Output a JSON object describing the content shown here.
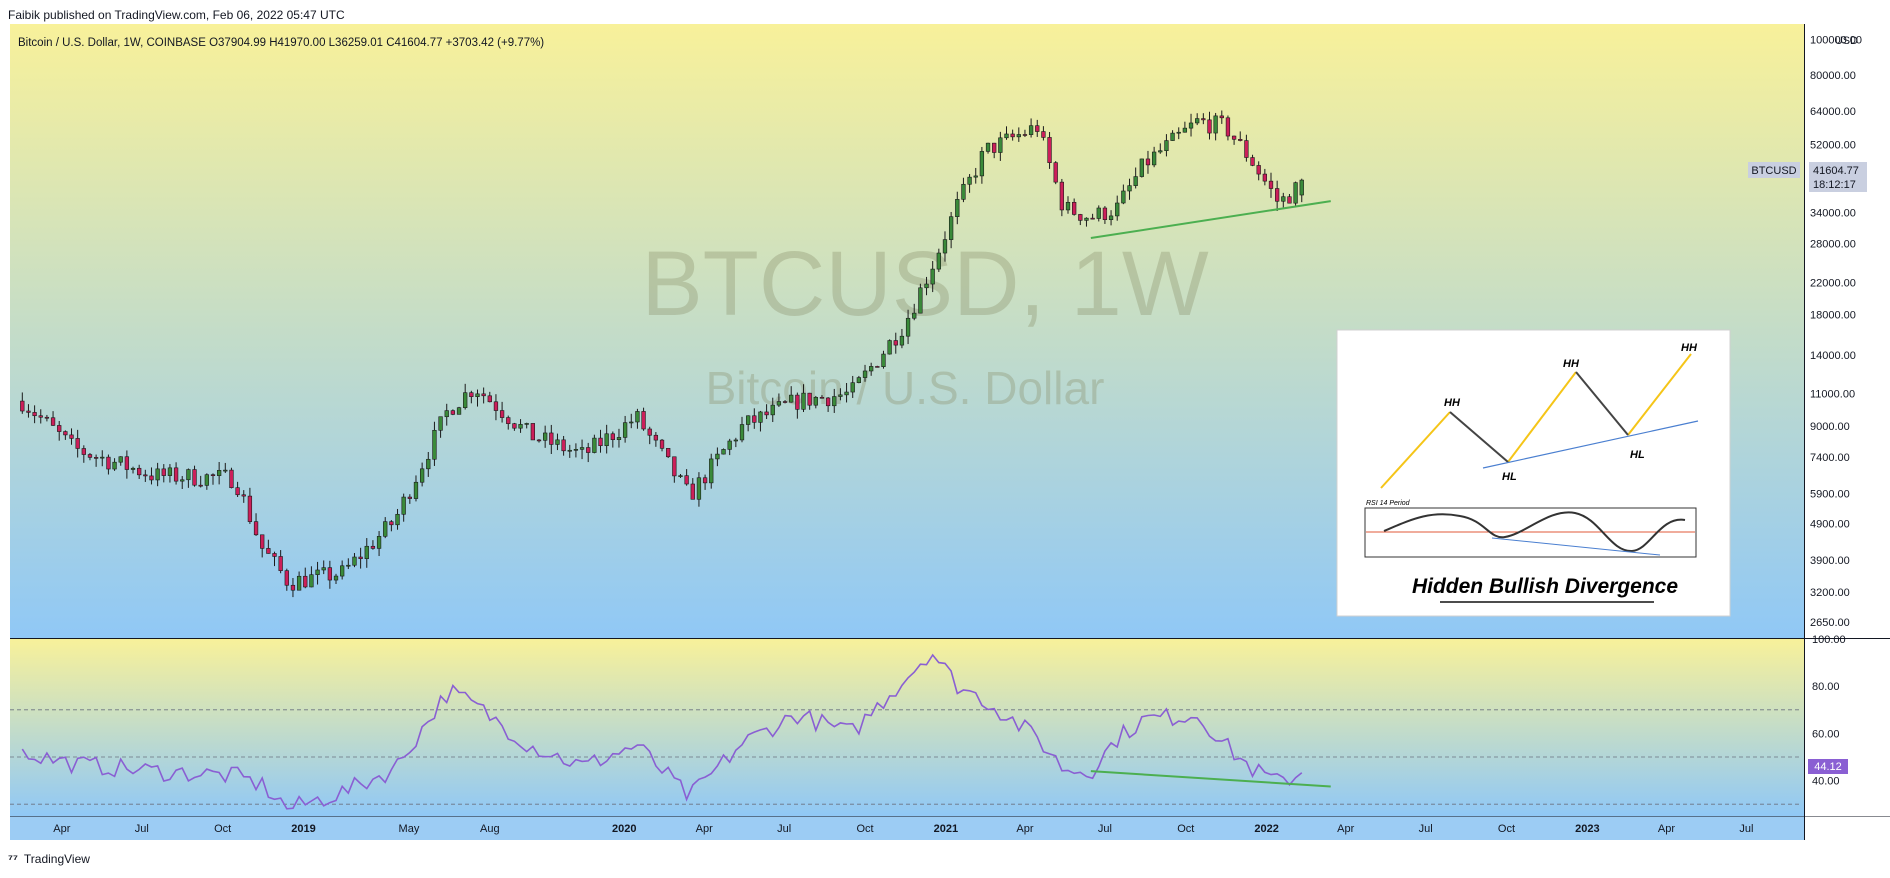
{
  "header": {
    "published_by": "Faibik published on TradingView.com, Feb 06, 2022 05:47 UTC",
    "symbol_line": "Bitcoin / U.S. Dollar, 1W, COINBASE  O37904.99  H41970.00  L36259.01  C41604.77  +3703.42 (+9.77%)"
  },
  "footer": {
    "brand": "TradingView"
  },
  "colors": {
    "up_candle": "#3a8a3a",
    "down_candle": "#cc1f5a",
    "rsi_line": "#8a5fd3",
    "trendline": "#4caf50",
    "bg_top": "#f8f19a",
    "bg_bottom": "#90c8f6"
  },
  "watermark": {
    "symbol": "BTCUSD, 1W",
    "name": "Bitcoin / U.S. Dollar"
  },
  "price_axis": {
    "currency_label": "USD",
    "ticks": [
      "100000.00",
      "80000.00",
      "64000.00",
      "52000.00",
      "34000.00",
      "28000.00",
      "22000.00",
      "18000.00",
      "14000.00",
      "11000.00",
      "9000.00",
      "7400.00",
      "5900.00",
      "4900.00",
      "3900.00",
      "3200.00",
      "2650.00"
    ],
    "last_price": "41604.77",
    "countdown": "18:12:17",
    "symbol_tag": "BTCUSD"
  },
  "rsi_axis": {
    "ticks": [
      "100.00",
      "80.00",
      "60.00",
      "40.00"
    ],
    "last_value": "44.12"
  },
  "time_axis": [
    "Apr",
    "Jul",
    "Oct",
    "2019",
    "May",
    "Aug",
    "2020",
    "Apr",
    "Jul",
    "Oct",
    "2021",
    "Apr",
    "Jul",
    "Oct",
    "2022",
    "Apr",
    "Jul",
    "Oct",
    "2023",
    "Apr",
    "Jul"
  ],
  "inset": {
    "labels": {
      "hh1": "HH",
      "hh2": "HH",
      "hh3": "HH",
      "hl1": "HL",
      "hl2": "HL"
    },
    "rsi_label": "RSI 14 Period",
    "caption": "Hidden Bullish Divergence"
  },
  "chart_data": {
    "type": "candlestick",
    "title": "Bitcoin / U.S. Dollar, 1W, COINBASE",
    "ylabel": "USD",
    "y_scale": "log",
    "ylim": [
      2400,
      110000
    ],
    "x": [
      "2018-02",
      "2018-04",
      "2018-07",
      "2018-10",
      "2018-11",
      "2018-12",
      "2019-02",
      "2019-04",
      "2019-06",
      "2019-07",
      "2019-09",
      "2019-11",
      "2020-01",
      "2020-03",
      "2020-05",
      "2020-07",
      "2020-09",
      "2020-11",
      "2020-12",
      "2021-01",
      "2021-02",
      "2021-04",
      "2021-05",
      "2021-06",
      "2021-07",
      "2021-08",
      "2021-10",
      "2021-11",
      "2021-12",
      "2022-01",
      "2022-02"
    ],
    "close": [
      10500,
      7800,
      6600,
      6500,
      4200,
      3400,
      3600,
      5000,
      10000,
      11500,
      8500,
      7500,
      9500,
      5800,
      9000,
      10500,
      11000,
      17000,
      24000,
      36000,
      50000,
      58000,
      35000,
      33000,
      35000,
      46000,
      60000,
      58000,
      47000,
      36000,
      41604.77
    ],
    "last_ohlc": {
      "open": 37904.99,
      "high": 41970.0,
      "low": 36259.01,
      "close": 41604.77,
      "change": 3703.42,
      "change_pct": 9.77
    },
    "rsi": {
      "period": 14,
      "ylim": [
        25,
        100
      ],
      "levels": [
        70,
        50,
        30
      ],
      "values": [
        52,
        47,
        44,
        42,
        38,
        28,
        35,
        45,
        78,
        72,
        55,
        46,
        55,
        33,
        56,
        68,
        60,
        83,
        95,
        80,
        74,
        58,
        45,
        44,
        58,
        66,
        68,
        55,
        45,
        39,
        44.12
      ]
    },
    "annotations": [
      {
        "type": "trendline",
        "pane": "price",
        "from": {
          "x": "2021-06",
          "y": 29000
        },
        "to": {
          "x": "2022-03",
          "y": 36500
        }
      },
      {
        "type": "trendline",
        "pane": "rsi",
        "from": {
          "x": "2021-06",
          "y": 44
        },
        "to": {
          "x": "2022-03",
          "y": 37.5
        }
      }
    ]
  }
}
